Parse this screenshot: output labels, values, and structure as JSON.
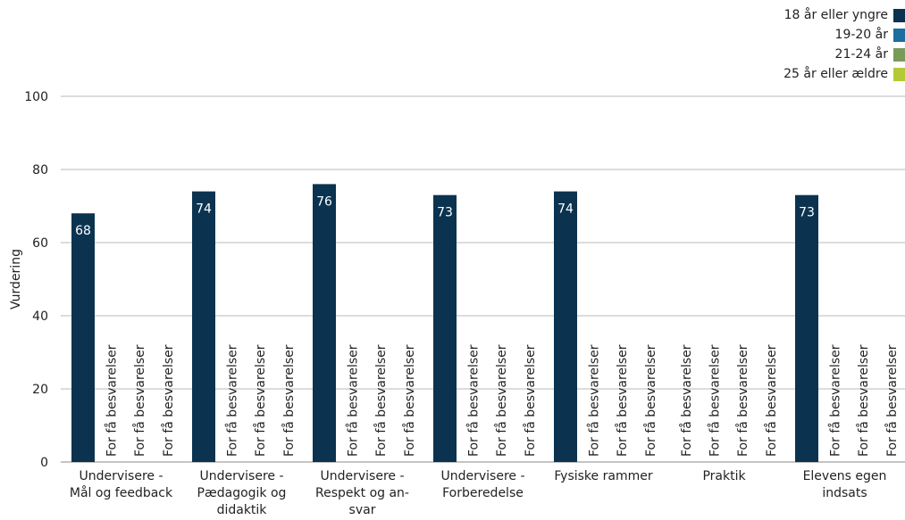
{
  "chart_data": {
    "type": "bar",
    "ylabel": "Vurdering",
    "xlabel": "",
    "ylim": [
      0,
      100
    ],
    "yticks": [
      0,
      20,
      40,
      60,
      80,
      100
    ],
    "grid": true,
    "legend_position": "top-right",
    "categories": [
      [
        "Undervisere -",
        "Mål og feedback"
      ],
      [
        "Undervisere -",
        "Pædagogik og",
        "didaktik"
      ],
      [
        "Undervisere -",
        "Respekt og an-",
        "svar"
      ],
      [
        "Undervisere -",
        "Forberedelse"
      ],
      [
        "Fysiske rammer"
      ],
      [
        "Praktik"
      ],
      [
        "Elevens egen",
        "indsats"
      ]
    ],
    "placeholder_text": "For få besvarelser",
    "series": [
      {
        "name": "18 år eller yngre",
        "color": "#0b3350",
        "values": [
          68,
          74,
          76,
          73,
          74,
          null,
          73
        ]
      },
      {
        "name": "19-20 år",
        "color": "#1a6fa0",
        "values": [
          null,
          null,
          null,
          null,
          null,
          null,
          null
        ]
      },
      {
        "name": "21-24 år",
        "color": "#7a9a5a",
        "values": [
          null,
          null,
          null,
          null,
          null,
          null,
          null
        ]
      },
      {
        "name": "25 år eller ældre",
        "color": "#b5c934",
        "values": [
          null,
          null,
          null,
          null,
          null,
          null,
          null
        ]
      }
    ]
  }
}
